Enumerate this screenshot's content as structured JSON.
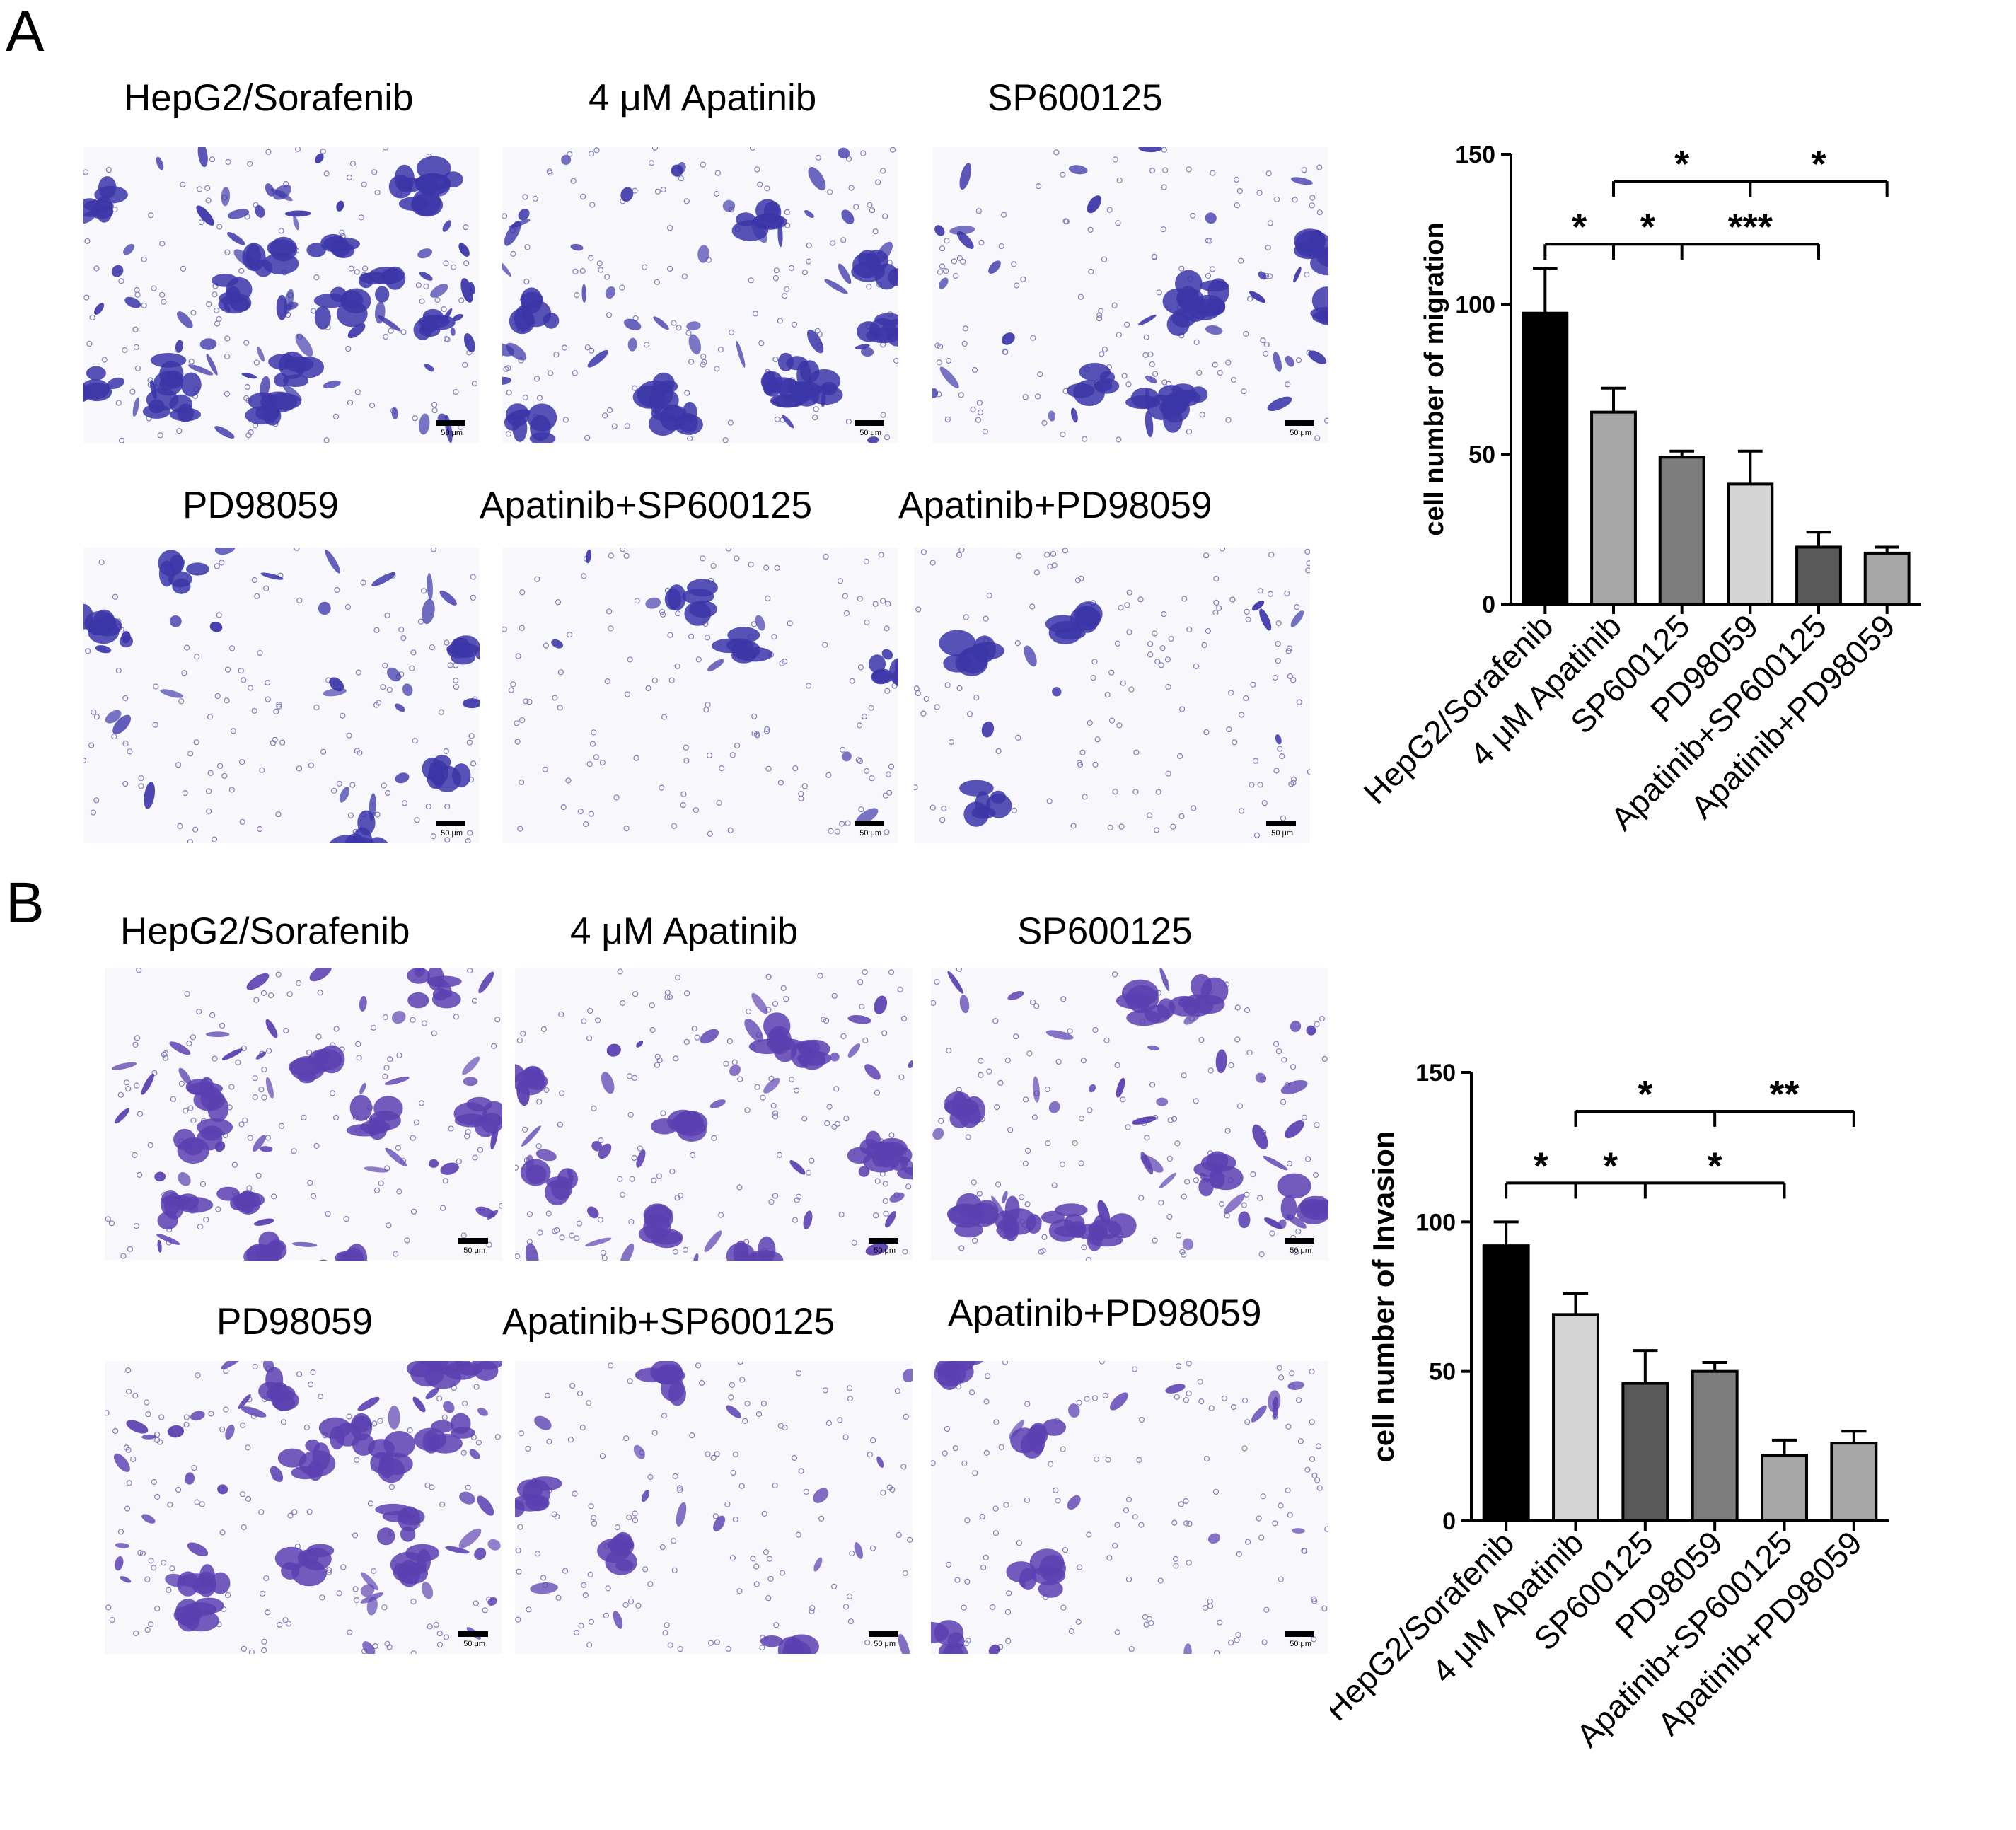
{
  "figure": {
    "panel_a_label": "A",
    "panel_b_label": "B",
    "scale_bar_label": "50 μm",
    "panel_a_captions": [
      "HepG2/Sorafenib",
      "4 μM Apatinib",
      "SP600125",
      "PD98059",
      "Apatinib+SP600125",
      "Apatinib+PD98059"
    ],
    "panel_b_captions": [
      "HepG2/Sorafenib",
      "4 μM Apatinib",
      "SP600125",
      "PD98059",
      "Apatinib+SP600125",
      "Apatinib+PD98059"
    ]
  },
  "colors": {
    "stain": "#3b35a8",
    "stain_b": "#5a3fb0",
    "background": "#f8f8fc"
  },
  "chart_data": [
    {
      "type": "bar",
      "panel": "A",
      "title": "",
      "xlabel": "",
      "ylabel": "cell number of migration",
      "ylim": [
        0,
        150
      ],
      "yticks": [
        0,
        50,
        100,
        150
      ],
      "categories": [
        "HepG2/Sorafenib",
        "4 μM Apatinib",
        "SP600125",
        "PD98059",
        "Apatinib+SP600125",
        "Apatinib+PD98059"
      ],
      "values": [
        97,
        64,
        49,
        40,
        19,
        17
      ],
      "errors": [
        15,
        8,
        2,
        11,
        5,
        2
      ],
      "bar_colors": [
        "#000000",
        "#a6a6a6",
        "#7c7c7c",
        "#d4d4d4",
        "#595959",
        "#a6a6a6"
      ],
      "significance": [
        {
          "from": 0,
          "to": 4,
          "ticks": [
            0,
            1,
            2,
            4
          ],
          "labels": [
            {
              "between": [
                0,
                1
              ],
              "text": "*"
            },
            {
              "between": [
                1,
                2
              ],
              "text": "*"
            },
            {
              "between": [
                2,
                4
              ],
              "text": "***"
            }
          ],
          "level": 120
        },
        {
          "from": 1,
          "to": 5,
          "ticks": [
            1,
            3,
            5
          ],
          "labels": [
            {
              "between": [
                1,
                3
              ],
              "text": "*"
            },
            {
              "between": [
                3,
                5
              ],
              "text": "*"
            }
          ],
          "level": 141
        }
      ]
    },
    {
      "type": "bar",
      "panel": "B",
      "title": "",
      "xlabel": "",
      "ylabel": "cell number of Invasion",
      "ylim": [
        0,
        150
      ],
      "yticks": [
        0,
        50,
        100,
        150
      ],
      "categories": [
        "HepG2/Sorafenib",
        "4 μM Apatinib",
        "SP600125",
        "PD98059",
        "Apatinib+SP600125",
        "Apatinib+PD98059"
      ],
      "values": [
        92,
        69,
        46,
        50,
        22,
        26
      ],
      "errors": [
        8,
        7,
        11,
        3,
        5,
        4
      ],
      "bar_colors": [
        "#000000",
        "#d4d4d4",
        "#595959",
        "#7c7c7c",
        "#a6a6a6",
        "#a6a6a6"
      ],
      "significance": [
        {
          "from": 0,
          "to": 4,
          "ticks": [
            0,
            1,
            2,
            4
          ],
          "labels": [
            {
              "between": [
                0,
                1
              ],
              "text": "*"
            },
            {
              "between": [
                1,
                2
              ],
              "text": "*"
            },
            {
              "between": [
                2,
                4
              ],
              "text": "*"
            }
          ],
          "level": 113
        },
        {
          "from": 1,
          "to": 5,
          "ticks": [
            1,
            3,
            5
          ],
          "labels": [
            {
              "between": [
                1,
                3
              ],
              "text": "*"
            },
            {
              "between": [
                3,
                5
              ],
              "text": "**"
            }
          ],
          "level": 137
        }
      ]
    }
  ]
}
